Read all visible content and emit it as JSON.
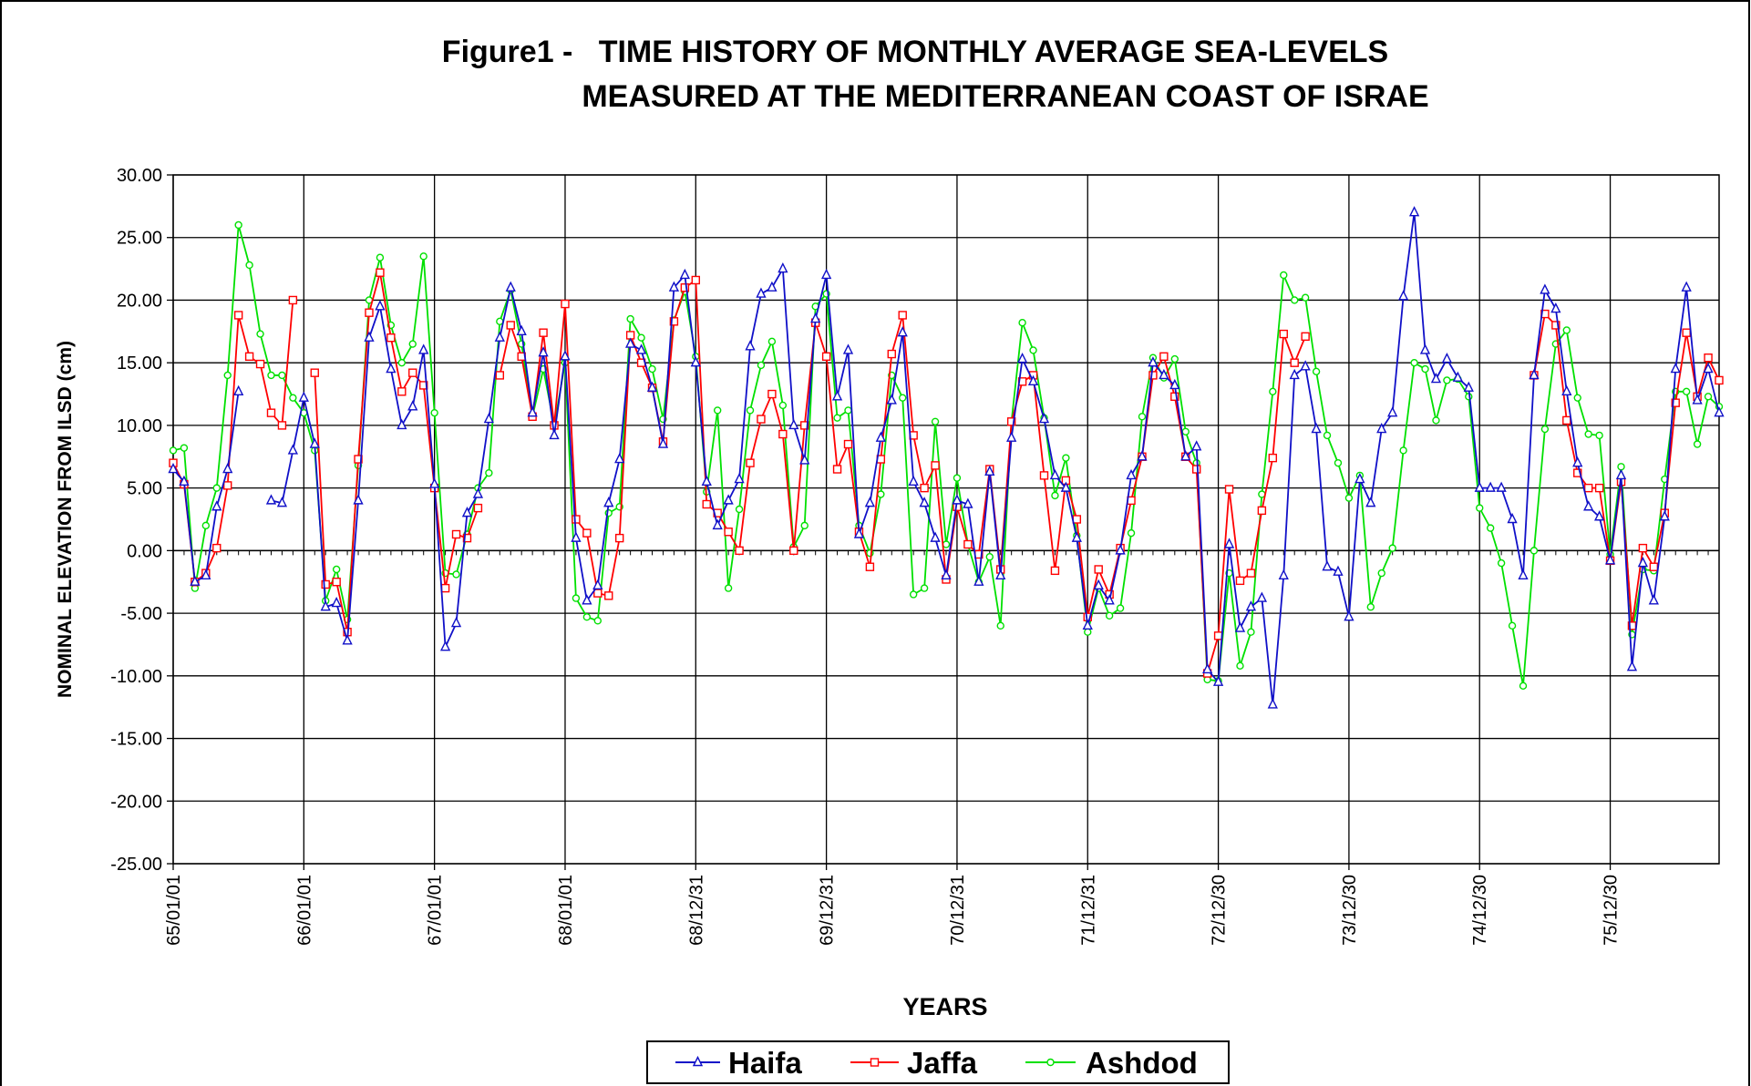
{
  "chart_data": {
    "type": "line",
    "title": "Figure1 -   TIME HISTORY OF MONTHLY AVERAGE SEA-LEVELS",
    "subtitle": "MEASURED AT THE MEDITERRANEAN COAST OF ISRAE",
    "x_label": "YEARS",
    "y_label": "NOMINAL ELEVATION FROM ILSD (cm)",
    "annotation": "]",
    "grid": true,
    "legend": "bottom",
    "ylim": [
      -25,
      30
    ],
    "yticks": [
      {
        "value": -25,
        "label": "-25.00"
      },
      {
        "value": -20,
        "label": "-20.00"
      },
      {
        "value": -15,
        "label": "-15.00"
      },
      {
        "value": -10,
        "label": "-10.00"
      },
      {
        "value": -5,
        "label": "-5.00"
      },
      {
        "value": 0,
        "label": "0.00"
      },
      {
        "value": 5,
        "label": "5.00"
      },
      {
        "value": 10,
        "label": "10.00"
      },
      {
        "value": 15,
        "label": "15.00"
      },
      {
        "value": 20,
        "label": "20.00"
      },
      {
        "value": 25,
        "label": "25.00"
      },
      {
        "value": 30,
        "label": "30.00"
      }
    ],
    "categories": [
      "65/01/01",
      null,
      null,
      null,
      null,
      null,
      null,
      null,
      null,
      null,
      null,
      null,
      "66/01/01",
      null,
      null,
      null,
      null,
      null,
      null,
      null,
      null,
      null,
      null,
      null,
      "67/01/01",
      null,
      null,
      null,
      null,
      null,
      null,
      null,
      null,
      null,
      null,
      null,
      "68/01/01",
      null,
      null,
      null,
      null,
      null,
      null,
      null,
      null,
      null,
      null,
      null,
      "68/12/31",
      null,
      null,
      null,
      null,
      null,
      null,
      null,
      null,
      null,
      null,
      null,
      "69/12/31",
      null,
      null,
      null,
      null,
      null,
      null,
      null,
      null,
      null,
      null,
      null,
      "70/12/31",
      null,
      null,
      null,
      null,
      null,
      null,
      null,
      null,
      null,
      null,
      null,
      "71/12/31",
      null,
      null,
      null,
      null,
      null,
      null,
      null,
      null,
      null,
      null,
      null,
      "72/12/30",
      null,
      null,
      null,
      null,
      null,
      null,
      null,
      null,
      null,
      null,
      null,
      "73/12/30",
      null,
      null,
      null,
      null,
      null,
      null,
      null,
      null,
      null,
      null,
      null,
      "74/12/30",
      null,
      null,
      null,
      null,
      null,
      null,
      null,
      null,
      null,
      null,
      null,
      "75/12/30",
      null,
      null,
      null,
      null,
      null,
      null,
      null,
      null,
      null,
      null
    ],
    "series": [
      {
        "name": "Haifa",
        "color": "#1010c8",
        "marker": "triangle",
        "values": [
          6.5,
          5.5,
          -2.5,
          -2,
          3.5,
          6.5,
          12.7,
          null,
          null,
          4,
          3.8,
          8,
          12.2,
          8.5,
          -4.5,
          -4.2,
          -7.2,
          4,
          17,
          19.5,
          14.5,
          10,
          11.5,
          16,
          5.3,
          -7.7,
          -5.8,
          3,
          4.5,
          10.5,
          17,
          21,
          17.5,
          11,
          15.8,
          9.2,
          15.5,
          1,
          -4,
          -2.8,
          3.8,
          7.3,
          16.5,
          16,
          13,
          8.5,
          21,
          22,
          15,
          5.5,
          2,
          4,
          5.7,
          16.3,
          20.5,
          21,
          22.5,
          10,
          7.2,
          18.5,
          22,
          12.3,
          16,
          1.3,
          3.8,
          9,
          12,
          17.4,
          5.5,
          3.8,
          1,
          -2,
          4,
          3.7,
          -2.5,
          6.3,
          -2,
          9,
          15.3,
          13.5,
          10.5,
          6,
          5,
          1,
          -6,
          -2.8,
          -4,
          0,
          6,
          7.5,
          15,
          14,
          13.2,
          7.5,
          8.3,
          -9.5,
          -10.5,
          0.5,
          -6.2,
          -4.5,
          -3.8,
          -12.3,
          -2,
          14,
          14.7,
          9.7,
          -1.3,
          -1.7,
          -5.3,
          5.7,
          3.8,
          9.7,
          11,
          20.3,
          27,
          16,
          13.7,
          15.3,
          13.8,
          13,
          5,
          5,
          5,
          2.5,
          -2,
          14,
          20.8,
          19.3,
          12.7,
          7,
          3.5,
          2.7,
          -0.8,
          6,
          -9.3,
          -1,
          -4,
          2.7,
          14.5,
          21,
          12,
          14.5,
          11
        ]
      },
      {
        "name": "Jaffa",
        "color": "#ff0000",
        "marker": "square",
        "values": [
          7,
          5.3,
          -2.5,
          -1.8,
          0.2,
          5.2,
          18.8,
          15.5,
          14.9,
          11,
          10,
          20,
          null,
          14.2,
          -2.7,
          -2.5,
          -6.5,
          7.3,
          19,
          22.2,
          17,
          12.7,
          14.2,
          13.2,
          5,
          -3,
          1.3,
          1,
          3.4,
          null,
          14,
          18,
          15.5,
          10.7,
          17.4,
          10,
          19.7,
          2.5,
          1.4,
          -3.4,
          -3.6,
          1,
          17.2,
          15,
          13,
          8.7,
          18.3,
          21,
          21.6,
          3.7,
          3,
          1.5,
          0,
          7,
          10.5,
          12.5,
          9.3,
          0,
          10,
          18.2,
          15.5,
          6.5,
          8.5,
          1.5,
          -1.3,
          7.3,
          15.7,
          18.8,
          9.2,
          5,
          6.8,
          -2.3,
          3.5,
          0.5,
          -0.3,
          6.5,
          -1.5,
          10.3,
          13.5,
          14,
          6,
          -1.6,
          5.6,
          2.5,
          -5.3,
          -1.5,
          -3.5,
          0.2,
          4,
          7.5,
          14,
          15.5,
          12.3,
          7.5,
          6.5,
          -9.8,
          -6.8,
          4.9,
          -2.4,
          -1.8,
          3.2,
          7.4,
          17.3,
          15,
          17.1,
          null,
          null,
          null,
          null,
          null,
          null,
          null,
          null,
          null,
          null,
          null,
          null,
          null,
          null,
          null,
          null,
          null,
          null,
          null,
          null,
          14,
          18.9,
          18,
          10.4,
          6.2,
          5,
          5,
          -0.8,
          5.5,
          -6,
          0.2,
          -1.3,
          3,
          11.8,
          17.4,
          12.3,
          15.4,
          13.6
        ]
      },
      {
        "name": "Ashdod",
        "color": "#00e000",
        "marker": "circle",
        "values": [
          8,
          8.2,
          -3,
          2,
          5,
          14,
          26,
          22.8,
          17.3,
          14,
          14,
          12.2,
          11,
          8,
          -4,
          -1.5,
          -5.5,
          6.8,
          20,
          23.4,
          18,
          15,
          16.5,
          23.5,
          11,
          -1.8,
          -1.9,
          1.3,
          5,
          6.2,
          18.3,
          20.8,
          16.5,
          10.7,
          14.5,
          10,
          15,
          -3.8,
          -5.3,
          -5.6,
          3,
          3.5,
          18.5,
          17,
          14.5,
          10.5,
          18.4,
          20.7,
          15.5,
          4.7,
          11.2,
          -3,
          3.3,
          11.2,
          14.8,
          16.7,
          11.6,
          0.3,
          2,
          19.5,
          20.5,
          10.6,
          11.2,
          2,
          -0.2,
          4.5,
          14,
          12.2,
          -3.5,
          -3,
          10.3,
          0.5,
          5.8,
          0.5,
          -2.5,
          -0.5,
          -6,
          10.3,
          18.2,
          16,
          10.6,
          4.4,
          7.4,
          1.2,
          -6.5,
          -3,
          -5.2,
          -4.6,
          1.4,
          10.7,
          15.4,
          13.8,
          15.3,
          9.5,
          7,
          -10.3,
          -10.4,
          -1.8,
          -9.2,
          -6.5,
          4.5,
          12.7,
          22,
          20,
          20.2,
          14.3,
          9.2,
          7,
          4.2,
          6,
          -4.5,
          -1.8,
          0.2,
          8,
          15,
          14.5,
          10.4,
          13.6,
          13.7,
          12.3,
          3.4,
          1.8,
          -1,
          -6,
          -10.8,
          0,
          9.7,
          16.5,
          17.6,
          12.2,
          9.3,
          9.2,
          -0.3,
          6.7,
          -6.7,
          -1.5,
          -1.6,
          5.7,
          12.7,
          12.7,
          8.5,
          12.3,
          11.5
        ]
      }
    ]
  }
}
